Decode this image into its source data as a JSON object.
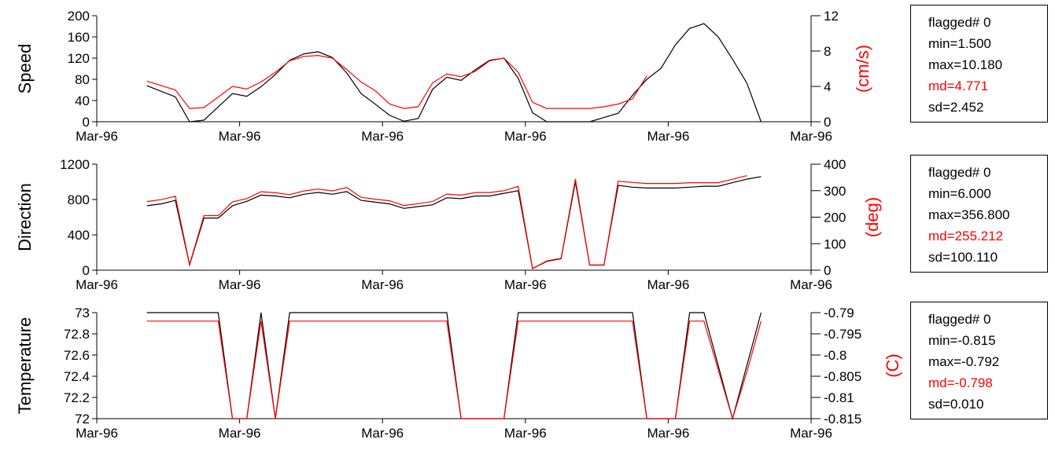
{
  "chart_data": [
    {
      "type": "line",
      "panel": "speed",
      "ylabel": "Speed",
      "y2label": "(cm/s)",
      "x_tick_labels": [
        "Mar-96",
        "Mar-96",
        "Mar-96",
        "Mar-96",
        "Mar-96",
        "Mar-96"
      ],
      "ylim": [
        0,
        200
      ],
      "yticks": [
        "0",
        "40",
        "80",
        "120",
        "160",
        "200"
      ],
      "y2lim": [
        0,
        12
      ],
      "y2ticks": [
        "0",
        "4",
        "8",
        "12"
      ],
      "xlim": [
        0,
        25
      ],
      "series": [
        {
          "color": "#000000",
          "axis": "left",
          "x": [
            1.75,
            2.75,
            3.25,
            3.75,
            4.25,
            4.75,
            5.25,
            5.75,
            6.25,
            6.75,
            7.25,
            7.75,
            8.25,
            8.75,
            9.25,
            9.75,
            10.25,
            10.75,
            11.25,
            11.75,
            12.25,
            12.75,
            13.25,
            13.75,
            14.25,
            14.75,
            15.25,
            15.75,
            16.25,
            16.75,
            17.25,
            17.75,
            18.25,
            18.75,
            19.25,
            19.75,
            20.25,
            20.75,
            21.25,
            21.75,
            22.25,
            22.75,
            23.25
          ],
          "y": [
            68,
            47,
            0,
            3,
            28,
            53,
            48,
            66,
            89,
            116,
            128,
            132,
            121,
            92,
            53,
            33,
            12,
            1,
            6,
            61,
            84,
            78,
            98,
            116,
            120,
            82,
            17,
            0,
            0,
            0,
            0,
            8,
            16,
            50,
            80,
            101,
            145,
            176,
            185,
            160,
            118,
            73,
            0
          ]
        },
        {
          "color": "#ff0000",
          "axis": "right",
          "x": [
            1.75,
            2.75,
            3.25,
            3.75,
            4.25,
            4.75,
            5.25,
            5.75,
            6.25,
            6.75,
            7.25,
            7.75,
            8.25,
            8.75,
            9.25,
            9.75,
            10.25,
            10.75,
            11.25,
            11.75,
            12.25,
            12.75,
            13.25,
            13.75,
            14.25,
            14.75,
            15.25,
            15.75,
            16.25,
            16.75,
            17.25,
            17.75,
            18.25,
            18.75,
            19.25
          ],
          "y": [
            4.6,
            3.6,
            1.5,
            1.6,
            2.8,
            4.0,
            3.7,
            4.5,
            5.6,
            6.9,
            7.4,
            7.5,
            7.2,
            5.9,
            4.5,
            3.5,
            2.0,
            1.5,
            1.7,
            4.4,
            5.4,
            5.1,
            5.7,
            6.9,
            7.2,
            5.6,
            2.2,
            1.5,
            1.5,
            1.5,
            1.5,
            1.7,
            2.0,
            2.6,
            5.2
          ]
        }
      ]
    },
    {
      "type": "line",
      "panel": "direction",
      "ylabel": "Direction",
      "y2label": "(deg)",
      "x_tick_labels": [
        "Mar-96",
        "Mar-96",
        "Mar-96",
        "Mar-96",
        "Mar-96",
        "Mar-96"
      ],
      "ylim": [
        0,
        1200
      ],
      "yticks": [
        "0",
        "400",
        "800",
        "1200"
      ],
      "y2lim": [
        0,
        400
      ],
      "y2ticks": [
        "0",
        "100",
        "200",
        "300",
        "400"
      ],
      "xlim": [
        0,
        25
      ],
      "series": [
        {
          "color": "#000000",
          "axis": "left",
          "x": [
            1.75,
            2.25,
            2.75,
            3.25,
            3.75,
            4.25,
            4.75,
            5.25,
            5.75,
            6.25,
            6.75,
            7.25,
            7.75,
            8.25,
            8.75,
            9.25,
            9.75,
            10.25,
            10.75,
            11.25,
            11.75,
            12.25,
            12.75,
            13.25,
            13.75,
            14.25,
            14.75,
            15.25,
            15.75,
            16.25,
            16.75,
            17.25,
            17.75,
            18.25,
            18.75,
            19.25,
            19.75,
            20.25,
            20.75,
            21.25,
            21.75,
            22.25,
            22.75,
            23.25
          ],
          "y": [
            730,
            750,
            790,
            60,
            590,
            590,
            730,
            780,
            850,
            840,
            820,
            860,
            880,
            860,
            890,
            790,
            770,
            750,
            700,
            720,
            740,
            820,
            810,
            840,
            840,
            870,
            900,
            20,
            100,
            130,
            1000,
            60,
            60,
            960,
            940,
            930,
            930,
            930,
            940,
            950,
            950,
            990,
            1030,
            1060
          ]
        },
        {
          "color": "#ff0000",
          "axis": "right",
          "x": [
            1.75,
            2.25,
            2.75,
            3.25,
            3.75,
            4.25,
            4.75,
            5.25,
            5.75,
            6.25,
            6.75,
            7.25,
            7.75,
            8.25,
            8.75,
            9.25,
            9.75,
            10.25,
            10.75,
            11.25,
            11.75,
            12.25,
            12.75,
            13.25,
            13.75,
            14.25,
            14.75,
            15.25,
            15.75,
            16.25,
            16.75,
            17.25,
            17.75,
            18.25,
            18.75,
            19.25,
            19.75,
            20.25,
            20.75,
            21.25,
            21.75,
            22.25,
            22.75
          ],
          "y": [
            259,
            266,
            279,
            22,
            206,
            206,
            258,
            270,
            296,
            292,
            285,
            299,
            306,
            299,
            312,
            275,
            268,
            262,
            244,
            251,
            259,
            287,
            283,
            293,
            293,
            300,
            316,
            6,
            35,
            45,
            344,
            19,
            19,
            336,
            331,
            327,
            327,
            327,
            330,
            330,
            330,
            343,
            356.8
          ]
        }
      ]
    },
    {
      "type": "line",
      "panel": "temperature",
      "ylabel": "Temperature",
      "y2label": "(C)",
      "x_tick_labels": [
        "Mar-96",
        "Mar-96",
        "Mar-96",
        "Mar-96",
        "Mar-96",
        "Mar-96"
      ],
      "ylim": [
        72,
        73
      ],
      "yticks": [
        "72",
        "72.2",
        "72.4",
        "72.6",
        "72.8",
        "73"
      ],
      "y2lim": [
        -0.815,
        -0.79
      ],
      "y2ticks": [
        "-0.815",
        "-0.81",
        "-0.805",
        "-0.8",
        "-0.795",
        "-0.79"
      ],
      "xlim": [
        0,
        25
      ],
      "series": [
        {
          "color": "#000000",
          "axis": "left",
          "x": [
            1.75,
            4.25,
            4.75,
            5.25,
            5.75,
            6.25,
            6.75,
            7.25,
            12.25,
            12.75,
            13.25,
            14.25,
            14.75,
            18.75,
            19.25,
            20.25,
            20.75,
            21.25,
            22.25,
            22.75,
            23.25
          ],
          "y": [
            73,
            73,
            72,
            72,
            73,
            72,
            73,
            73,
            73,
            72,
            72,
            72,
            73,
            73,
            72,
            72,
            73,
            73,
            72,
            72.5,
            73
          ]
        },
        {
          "color": "#ff0000",
          "axis": "right",
          "x": [
            1.75,
            4.25,
            4.75,
            5.25,
            5.75,
            6.25,
            6.75,
            7.25,
            12.25,
            12.75,
            13.25,
            14.25,
            14.75,
            18.75,
            19.25,
            20.25,
            20.75,
            21.25,
            22.25,
            22.75,
            23.25
          ],
          "y": [
            -0.792,
            -0.792,
            -0.815,
            -0.815,
            -0.792,
            -0.815,
            -0.792,
            -0.792,
            -0.792,
            -0.815,
            -0.815,
            -0.815,
            -0.792,
            -0.792,
            -0.815,
            -0.815,
            -0.792,
            -0.792,
            -0.815,
            -0.804,
            -0.792
          ]
        }
      ]
    }
  ],
  "stats": [
    {
      "flagged": "flagged# 0",
      "min": "min=1.500",
      "max": "max=10.180",
      "md": "md=4.771",
      "sd": "sd=2.452"
    },
    {
      "flagged": "flagged# 0",
      "min": "min=6.000",
      "max": "max=356.800",
      "md": "md=255.212",
      "sd": "sd=100.110"
    },
    {
      "flagged": "flagged# 0",
      "min": "min=-0.815",
      "max": "max=-0.792",
      "md": "md=-0.798",
      "sd": "sd=0.010"
    }
  ],
  "colors": {
    "primary": "#000000",
    "secondary": "#ff0000"
  }
}
